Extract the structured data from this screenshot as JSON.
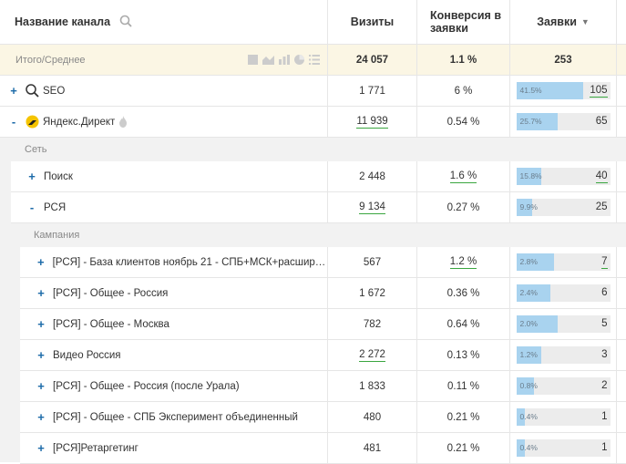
{
  "header": {
    "name": "Название канала",
    "visits": "Визиты",
    "conversion": "Конверсия в заявки",
    "requests": "Заявки"
  },
  "summary": {
    "label": "Итого/Среднее",
    "visits": "24 057",
    "conversion": "1.1 %",
    "requests": "253"
  },
  "rows": [
    {
      "toggle": "+",
      "name": "SEO",
      "visits": "1 771",
      "conversion": "6 %",
      "bar_pct_label": "41.5%",
      "bar_fraction": 0.415,
      "requests": "105"
    },
    {
      "toggle": "-",
      "name": "Яндекс.Директ",
      "visits": "11 939",
      "conversion": "0.54 %",
      "bar_pct_label": "25.7%",
      "bar_fraction": 0.257,
      "requests": "65"
    }
  ],
  "group_net": {
    "label": "Сеть"
  },
  "net_rows": [
    {
      "toggle": "+",
      "name": "Поиск",
      "visits": "2 448",
      "conversion": "1.6 %",
      "bar_pct_label": "15.8%",
      "bar_fraction": 0.158,
      "requests": "40"
    },
    {
      "toggle": "-",
      "name": "РСЯ",
      "visits": "9 134",
      "conversion": "0.27 %",
      "bar_pct_label": "9.9%",
      "bar_fraction": 0.099,
      "requests": "25"
    }
  ],
  "group_campaign": {
    "label": "Кампания"
  },
  "campaign_rows": [
    {
      "toggle": "+",
      "name": "[РСЯ] - База клиентов ноябрь 21 - СПБ+МСК+расширен...",
      "visits": "567",
      "conversion": "1.2 %",
      "bar_pct_label": "2.8%",
      "bar_fraction": 0.028,
      "requests": "7"
    },
    {
      "toggle": "+",
      "name": "[РСЯ] - Общее - Россия",
      "visits": "1 672",
      "conversion": "0.36 %",
      "bar_pct_label": "2.4%",
      "bar_fraction": 0.024,
      "requests": "6"
    },
    {
      "toggle": "+",
      "name": " [РСЯ] - Общее - Москва",
      "visits": "782",
      "conversion": "0.64 %",
      "bar_pct_label": "2.0%",
      "bar_fraction": 0.02,
      "requests": "5"
    },
    {
      "toggle": "+",
      "name": "Видео Россия",
      "visits": "2 272",
      "conversion": "0.13 %",
      "bar_pct_label": "1.2%",
      "bar_fraction": 0.012,
      "requests": "3"
    },
    {
      "toggle": "+",
      "name": "[РСЯ] - Общее - Россия (после Урала)",
      "visits": "1 833",
      "conversion": "0.11 %",
      "bar_pct_label": "0.8%",
      "bar_fraction": 0.008,
      "requests": "2"
    },
    {
      "toggle": "+",
      "name": "[РСЯ] - Общее - СПБ Эксперимент объединенный",
      "visits": "480",
      "conversion": "0.21 %",
      "bar_pct_label": "0.4%",
      "bar_fraction": 0.004,
      "requests": "1"
    },
    {
      "toggle": "+",
      "name": "[РСЯ]Ретаргетинг",
      "visits": "481",
      "conversion": "0.21 %",
      "bar_pct_label": "0.4%",
      "bar_fraction": 0.004,
      "requests": "1"
    }
  ],
  "colors": {
    "bar": "#a9d3ef",
    "bar_bg": "#ececec",
    "toggle": "#1b6aa8",
    "underline": "#3aa640",
    "summary_bg": "#fbf6e4"
  }
}
